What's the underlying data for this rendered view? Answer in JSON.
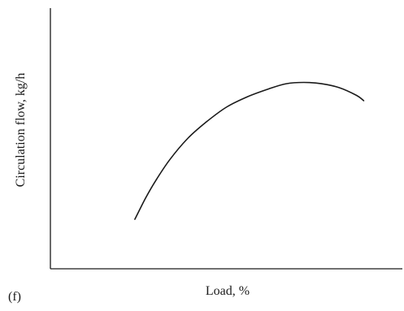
{
  "panel_label": "(f)",
  "chart_data": {
    "type": "line",
    "title": "",
    "xlabel": "Load, %",
    "ylabel": "Circulation flow, kg/h",
    "grid": false,
    "legend": "none",
    "xlim": [
      0,
      100
    ],
    "ylim": [
      0,
      100
    ],
    "series": [
      {
        "color": "#1a1a1a",
        "x": [
          24,
          27,
          30,
          34,
          39,
          44,
          50,
          56,
          62,
          67,
          72,
          77,
          82,
          87,
          89
        ],
        "y": [
          19,
          27,
          34,
          42,
          50,
          56,
          62,
          66,
          69,
          71,
          71.5,
          71,
          69.5,
          66.5,
          64.5
        ]
      }
    ]
  }
}
